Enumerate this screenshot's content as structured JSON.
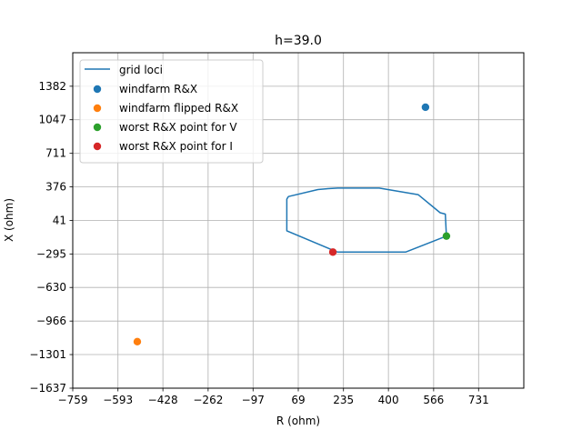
{
  "chart_data": {
    "type": "scatter",
    "title": "h=39.0",
    "xlabel": "R (ohm)",
    "ylabel": "X (ohm)",
    "xlim": [
      -759,
      897
    ],
    "ylim": [
      -1637,
      1717
    ],
    "x_ticks": [
      -759,
      -593,
      -428,
      -262,
      -97,
      69,
      235,
      400,
      566,
      731
    ],
    "x_tick_labels": [
      "−759",
      "−593",
      "−428",
      "−262",
      "−97",
      "69",
      "235",
      "400",
      "566",
      "731"
    ],
    "y_ticks": [
      -1637,
      -1301,
      -966,
      -630,
      -295,
      41,
      376,
      711,
      1047,
      1382
    ],
    "y_tick_labels": [
      "−1637",
      "−1301",
      "−966",
      "−630",
      "−295",
      "41",
      "376",
      "711",
      "1047",
      "1382"
    ],
    "grid": true,
    "legend_position": "top-left",
    "series": [
      {
        "name": "grid loci",
        "kind": "line",
        "color": "#1f77b4",
        "points": [
          [
            213,
            -276
          ],
          [
            255,
            -276
          ],
          [
            463,
            -276
          ],
          [
            613,
            -116
          ],
          [
            609,
            104
          ],
          [
            590,
            117
          ],
          [
            509,
            298
          ],
          [
            366,
            364
          ],
          [
            214,
            364
          ],
          [
            179,
            358
          ],
          [
            141,
            349
          ],
          [
            33,
            279
          ],
          [
            27,
            254
          ],
          [
            27,
            61
          ],
          [
            27,
            -64
          ],
          [
            213,
            -276
          ]
        ]
      },
      {
        "name": "windfarm R&X",
        "kind": "point",
        "color": "#1f77b4",
        "x": 536,
        "y": 1172
      },
      {
        "name": "windfarm flipped R&X",
        "kind": "point",
        "color": "#ff7f0e",
        "x": -522,
        "y": -1172
      },
      {
        "name": "worst R&X point for V",
        "kind": "point",
        "color": "#2ca02c",
        "x": 613,
        "y": -116
      },
      {
        "name": "worst R&X point for I",
        "kind": "point",
        "color": "#d62728",
        "x": 196,
        "y": -276
      }
    ]
  }
}
